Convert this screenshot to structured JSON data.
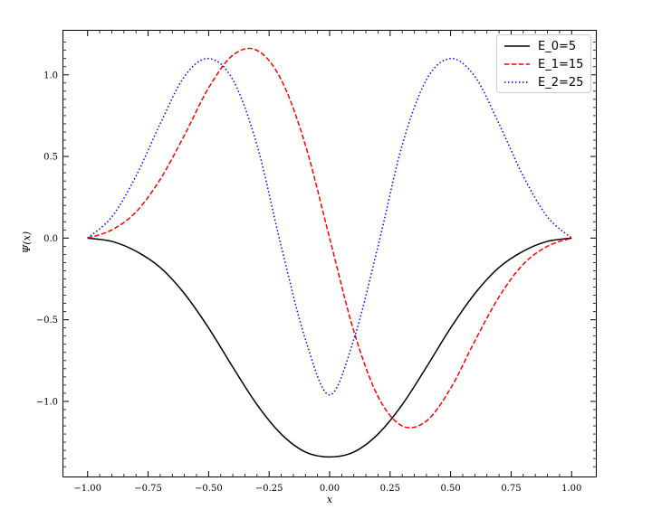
{
  "chart_data": {
    "type": "line",
    "xlabel": "x",
    "ylabel": "Ψ(x)",
    "xlim": [
      -1.1,
      1.1
    ],
    "ylim": [
      -1.46,
      1.27
    ],
    "x_ticks": [
      -1.0,
      -0.75,
      -0.5,
      -0.25,
      0.0,
      0.25,
      0.5,
      0.75,
      1.0
    ],
    "x_tick_labels": [
      "−1.00",
      "−0.75",
      "−0.50",
      "−0.25",
      "0.00",
      "0.25",
      "0.50",
      "0.75",
      "1.00"
    ],
    "y_ticks": [
      -1.0,
      -0.5,
      0.0,
      0.5,
      1.0
    ],
    "y_tick_labels": [
      "−1.0",
      "−0.5",
      "0.0",
      "0.5",
      "1.0"
    ],
    "grid": false,
    "legend_position": "top-right",
    "series": [
      {
        "name": "E_0=5",
        "color": "#000000",
        "style": "solid",
        "x": [
          -1.0,
          -0.9,
          -0.8,
          -0.7,
          -0.6,
          -0.5,
          -0.4,
          -0.3,
          -0.2,
          -0.1,
          0.0,
          0.1,
          0.2,
          0.3,
          0.4,
          0.5,
          0.6,
          0.7,
          0.8,
          0.9,
          1.0
        ],
        "y": [
          0.0,
          -0.02,
          -0.08,
          -0.18,
          -0.34,
          -0.55,
          -0.79,
          -1.02,
          -1.2,
          -1.31,
          -1.34,
          -1.31,
          -1.2,
          -1.02,
          -0.79,
          -0.55,
          -0.34,
          -0.18,
          -0.08,
          -0.02,
          0.0
        ]
      },
      {
        "name": "E_1=15",
        "color": "#ff0000",
        "style": "dashed",
        "x": [
          -1.0,
          -0.9,
          -0.8,
          -0.7,
          -0.6,
          -0.5,
          -0.4,
          -0.3,
          -0.2,
          -0.1,
          0.0,
          0.1,
          0.2,
          0.3,
          0.4,
          0.5,
          0.6,
          0.7,
          0.8,
          0.9,
          1.0
        ],
        "y": [
          0.0,
          0.05,
          0.16,
          0.36,
          0.63,
          0.92,
          1.12,
          1.15,
          0.97,
          0.57,
          0.0,
          -0.57,
          -0.97,
          -1.15,
          -1.12,
          -0.92,
          -0.63,
          -0.36,
          -0.16,
          -0.05,
          0.0
        ]
      },
      {
        "name": "E_2=25",
        "color": "#0000ff",
        "style": "dotted",
        "x": [
          -1.0,
          -0.9,
          -0.8,
          -0.7,
          -0.6,
          -0.5,
          -0.4,
          -0.3,
          -0.2,
          -0.1,
          0.0,
          0.1,
          0.2,
          0.3,
          0.4,
          0.5,
          0.6,
          0.7,
          0.8,
          0.9,
          1.0
        ],
        "y": [
          0.0,
          0.13,
          0.38,
          0.7,
          0.99,
          1.1,
          0.97,
          0.57,
          -0.05,
          -0.62,
          -0.96,
          -0.62,
          -0.05,
          0.57,
          0.97,
          1.1,
          0.99,
          0.7,
          0.38,
          0.13,
          0.0
        ]
      }
    ]
  }
}
